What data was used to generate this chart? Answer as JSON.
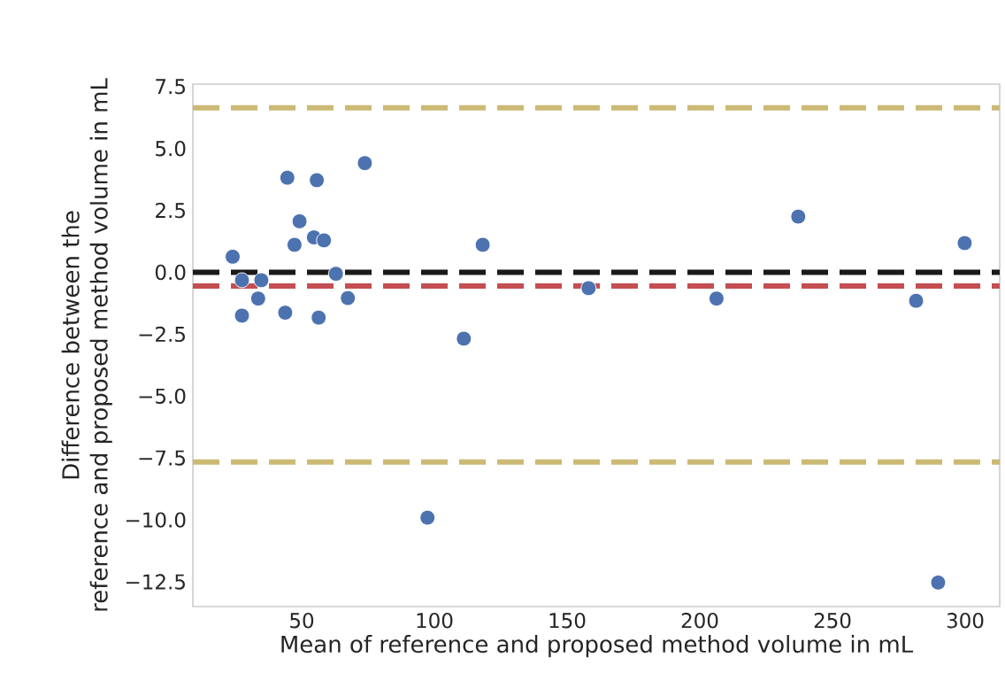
{
  "chart_data": {
    "type": "scatter",
    "xlabel": "Mean of reference and proposed method volume in mL",
    "ylabel": "Difference between the\nreference and proposed method volume in mL",
    "x": [
      24.0,
      27.5,
      34.8,
      33.6,
      27.5,
      44.6,
      55.7,
      73.8,
      49.2,
      47.3,
      54.6,
      58.4,
      62.9,
      67.4,
      43.8,
      56.4,
      111.1,
      118.2,
      158.1,
      206.3,
      237.1,
      281.5,
      299.8,
      97.4,
      289.8
    ],
    "values": [
      0.63,
      -0.32,
      -0.32,
      -1.06,
      -1.75,
      3.82,
      3.72,
      4.41,
      2.06,
      1.11,
      1.41,
      1.29,
      -0.06,
      -1.04,
      -1.63,
      -1.83,
      -2.68,
      1.11,
      -0.64,
      -1.06,
      2.25,
      -1.15,
      1.18,
      -9.91,
      -12.53
    ],
    "color": "#4c72b0",
    "xlim": [
      9,
      313
    ],
    "ylim": [
      -13.5,
      7.6
    ],
    "xticks": [
      50,
      100,
      150,
      200,
      250,
      300
    ],
    "yticks": [
      {
        "value": -12.5,
        "label": "−12.5"
      },
      {
        "value": -10.0,
        "label": "−10.0"
      },
      {
        "value": -7.5,
        "label": "−7.5"
      },
      {
        "value": -5.0,
        "label": "−5.0"
      },
      {
        "value": -2.5,
        "label": "−2.5"
      },
      {
        "value": 0.0,
        "label": "0.0"
      },
      {
        "value": 2.5,
        "label": "2.5"
      },
      {
        "value": 5.0,
        "label": "5.0"
      },
      {
        "value": 7.5,
        "label": "7.5"
      }
    ],
    "grid": false,
    "ref_lines": [
      {
        "axis": "y",
        "value": 6.64,
        "color": "#ccb974",
        "line_style": "dashed"
      },
      {
        "axis": "y",
        "value": 0,
        "color": "#1a1a1a",
        "line_style": "dashed"
      },
      {
        "axis": "y",
        "value": -0.55,
        "color": "#c44e52",
        "line_style": "dashed"
      },
      {
        "axis": "y",
        "value": -7.66,
        "color": "#ccb974",
        "line_style": "dashed"
      }
    ]
  }
}
